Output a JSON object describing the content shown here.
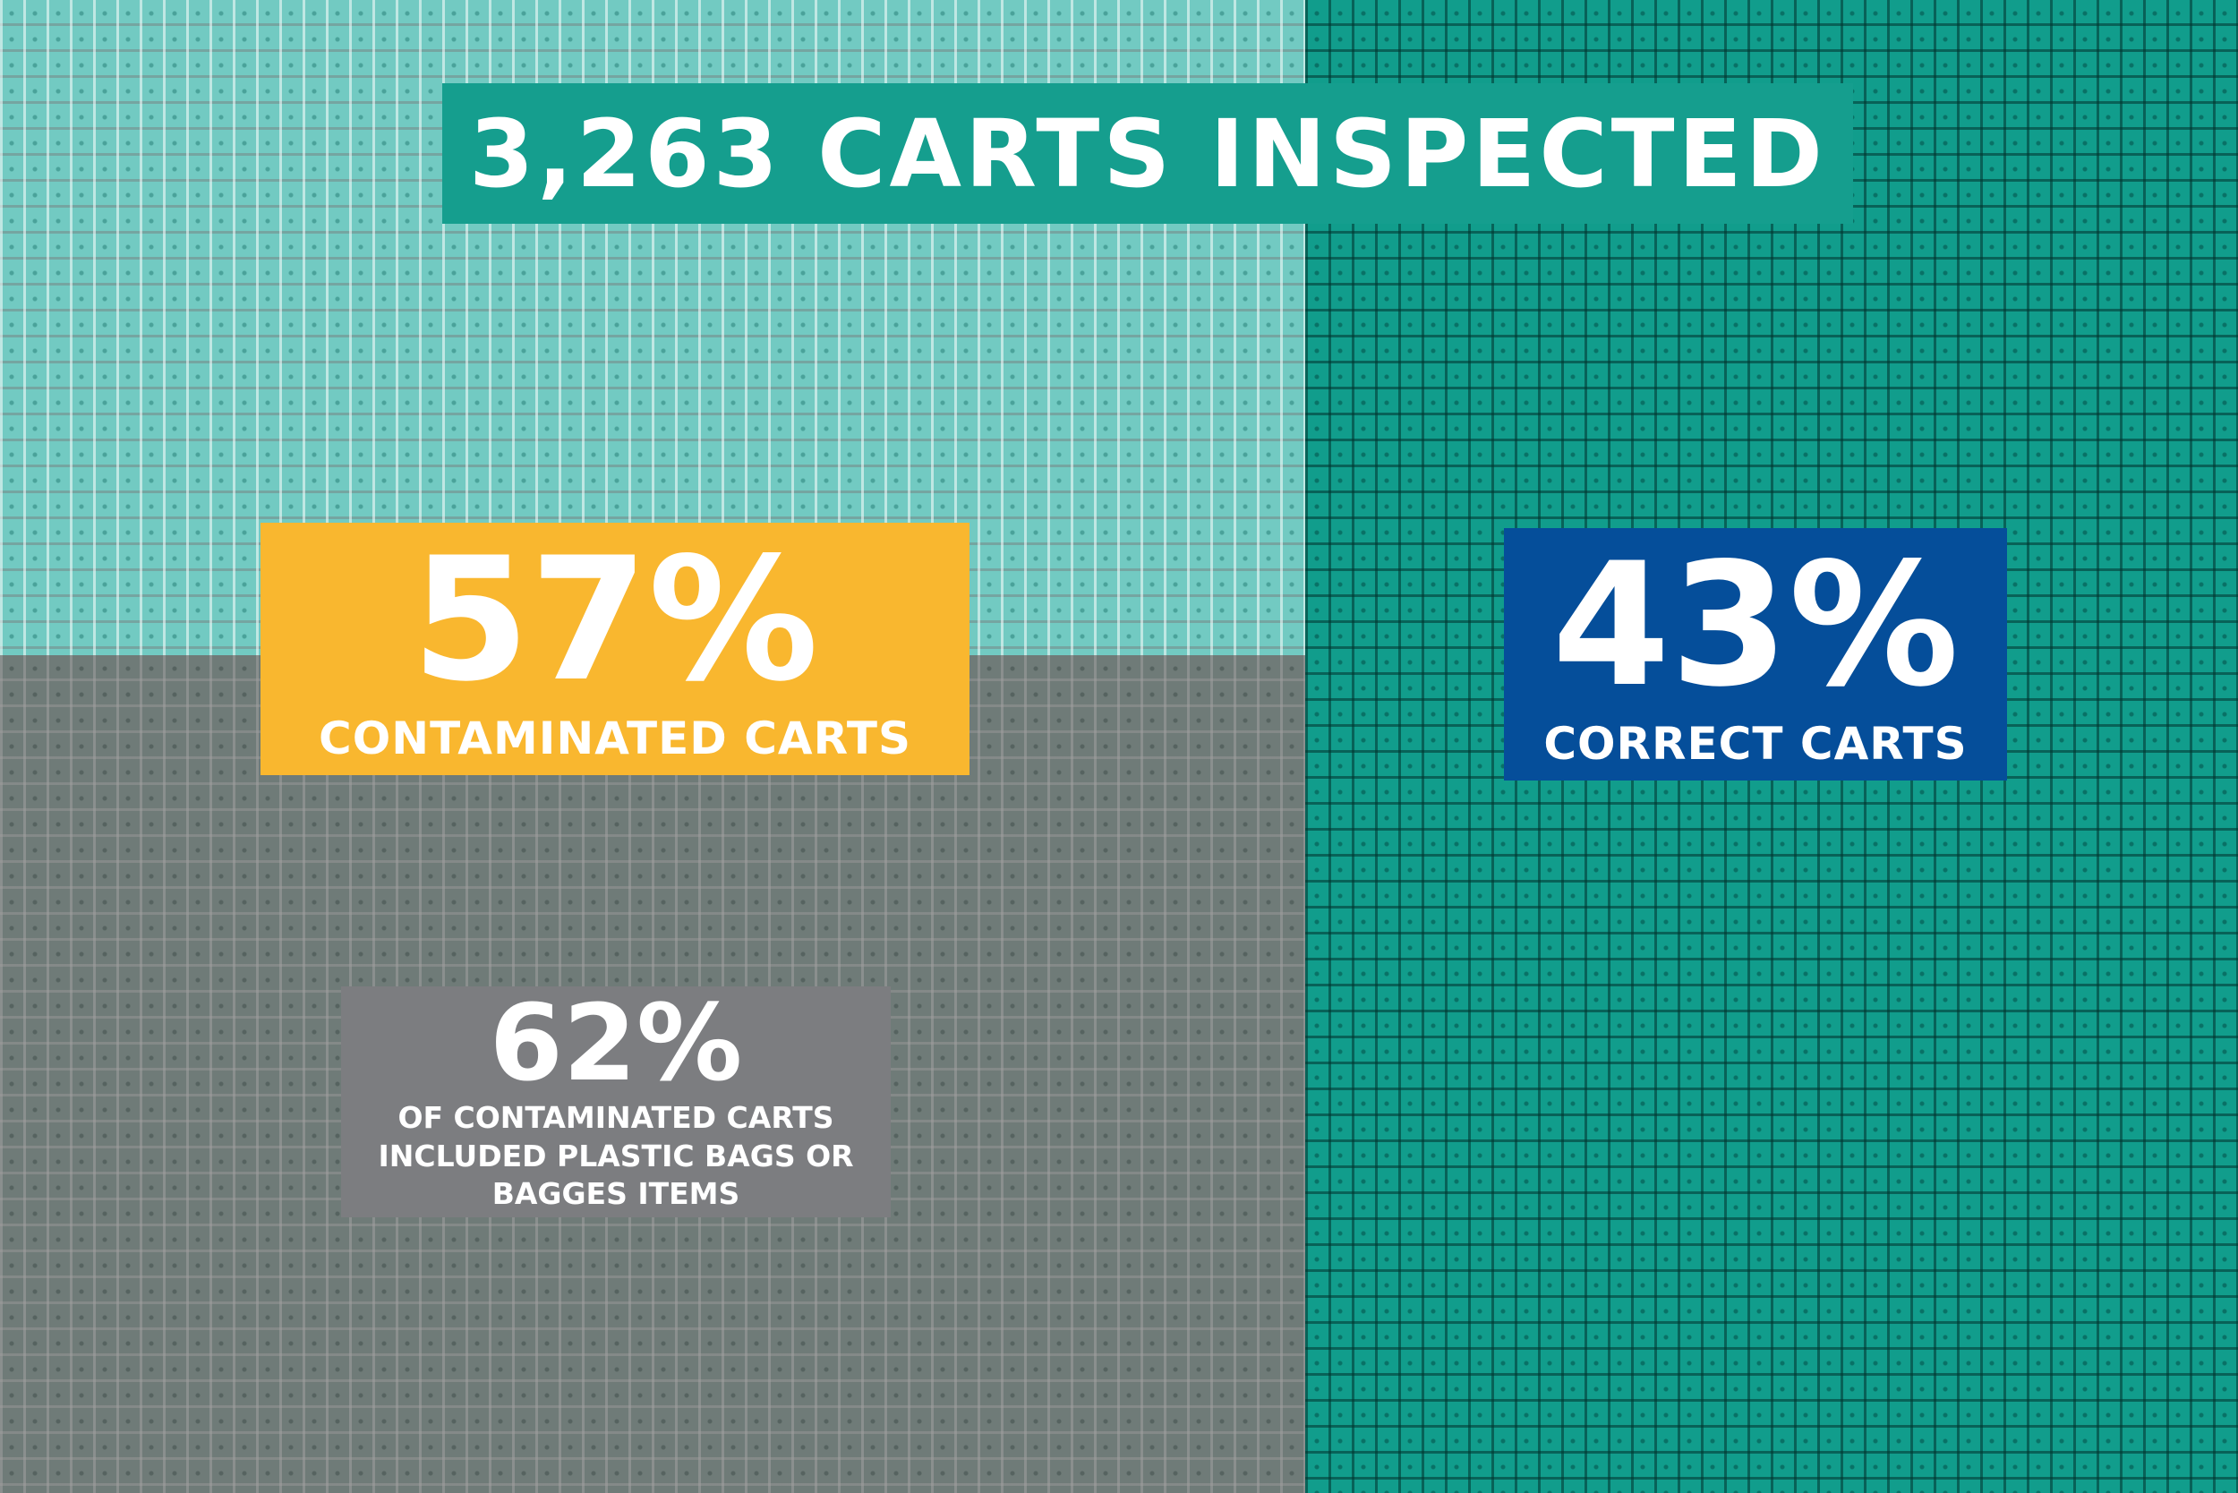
{
  "title": "3,263 CARTS INSPECTED",
  "contaminated": {
    "percent": "57%",
    "label": "CONTAMINATED CARTS",
    "color": "#f9b72f"
  },
  "correct": {
    "percent": "43%",
    "label": "CORRECT CARTS",
    "color": "#054e9a"
  },
  "plastic_bags": {
    "percent": "62%",
    "lines": [
      "OF CONTAMINATED CARTS",
      "INCLUDED PLASTIC BAGS OR",
      "BAGGES ITEMS"
    ],
    "color": "#7c7d80"
  },
  "region_colors": {
    "contaminated": "#72cac2",
    "correct": "#119d8c",
    "plastic_bags": "#6f7b78",
    "title": "#159e8e"
  },
  "icons": [
    "recycling-cart-icon"
  ]
}
